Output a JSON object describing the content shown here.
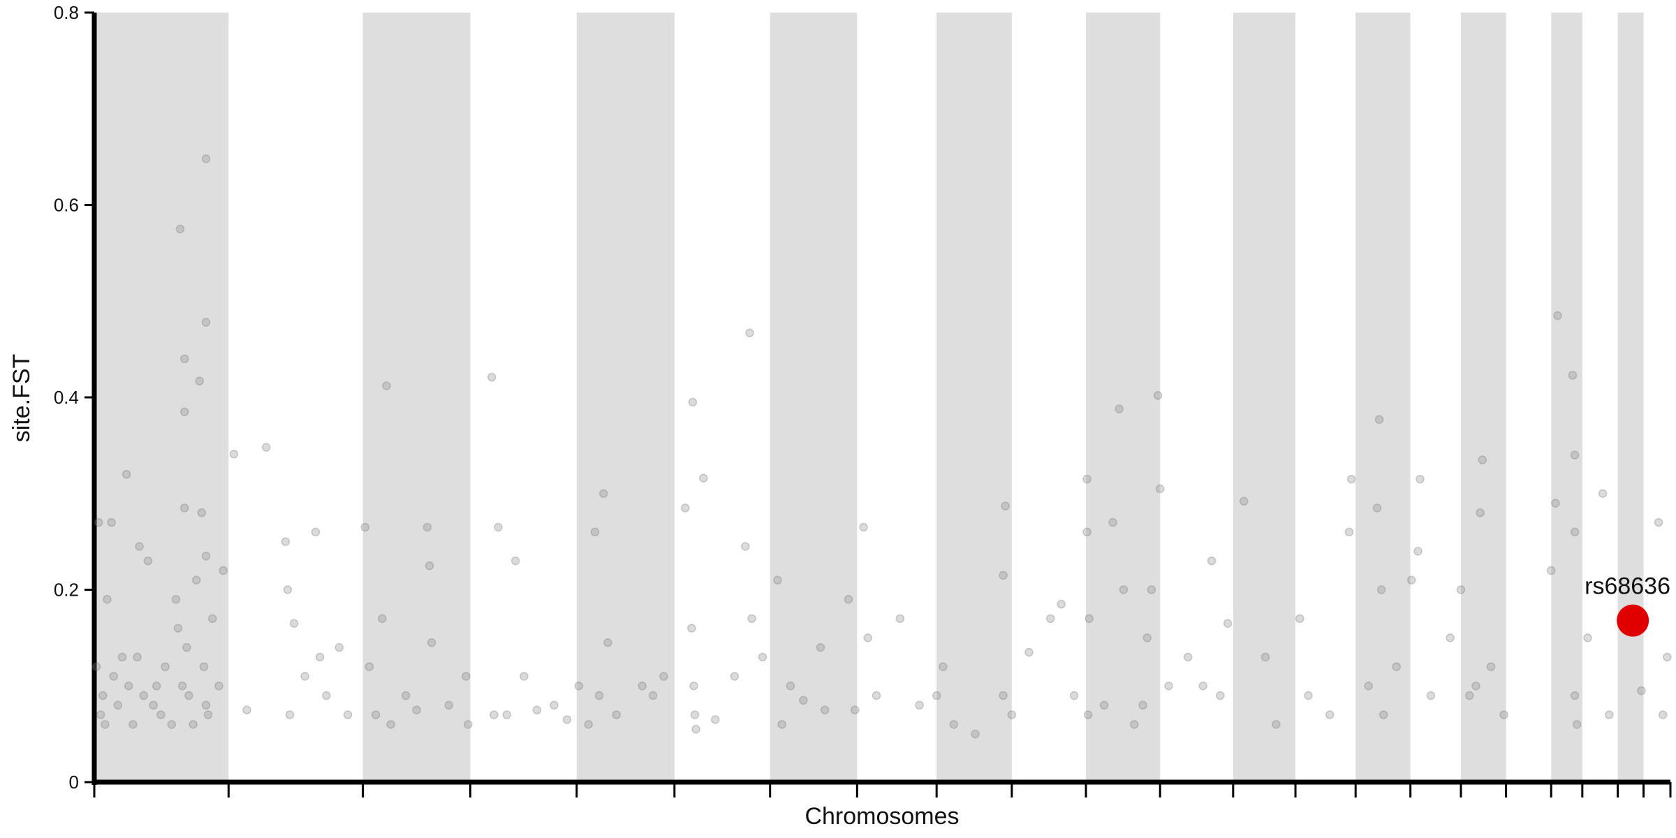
{
  "chart_data": {
    "type": "scatter",
    "xlabel": "Chromosomes",
    "ylabel": "site.FST",
    "xlim": [
      0,
      1467
    ],
    "ylim": [
      0,
      0.8
    ],
    "yticks": [
      0,
      0.2,
      0.4,
      0.6,
      0.8
    ],
    "xticks": [
      0,
      125,
      250,
      350,
      449,
      540,
      629,
      710,
      784,
      854,
      923,
      992,
      1060,
      1118,
      1174,
      1225,
      1272,
      1314,
      1356,
      1385,
      1418,
      1442,
      1467
    ],
    "alternate_shading": true,
    "shade_color": "#dedede",
    "series": [
      {
        "color": "#888888",
        "x": [
          2,
          4,
          6,
          8,
          10,
          12,
          16,
          18,
          22,
          26,
          30,
          32,
          36,
          40,
          42,
          46,
          50,
          55,
          58,
          62,
          66,
          72,
          76,
          78,
          80,
          82,
          84,
          84,
          84,
          86,
          88,
          92,
          95,
          98,
          100,
          102,
          104,
          104,
          104,
          104,
          106,
          110,
          116,
          120,
          130,
          142,
          160,
          178,
          180,
          182,
          186,
          196,
          206,
          210,
          216,
          228,
          236,
          252,
          256,
          262,
          268,
          272,
          276,
          290,
          300,
          310,
          312,
          314,
          330,
          346,
          348,
          370,
          372,
          376,
          384,
          392,
          400,
          412,
          428,
          440,
          451,
          460,
          466,
          470,
          474,
          478,
          486,
          510,
          520,
          530,
          550,
          556,
          557,
          558,
          559,
          560,
          567,
          578,
          596,
          606,
          610,
          612,
          622,
          636,
          640,
          648,
          660,
          676,
          680,
          702,
          708,
          716,
          720,
          728,
          750,
          768,
          784,
          790,
          800,
          820,
          846,
          848,
          846,
          854,
          870,
          890,
          900,
          912,
          924,
          924,
          925,
          926,
          940,
          948,
          954,
          958,
          968,
          976,
          980,
          984,
          990,
          992,
          1000,
          1018,
          1032,
          1040,
          1048,
          1055,
          1070,
          1090,
          1100,
          1122,
          1130,
          1150,
          1168,
          1170,
          1186,
          1194,
          1196,
          1198,
          1200,
          1212,
          1226,
          1232,
          1234,
          1244,
          1262,
          1272,
          1286,
          1280,
          1290,
          1292,
          1300,
          1312,
          1356,
          1360,
          1362,
          1376,
          1378,
          1378,
          1378,
          1380,
          1390,
          1404,
          1410,
          1440,
          1456,
          1460,
          1464
        ],
        "values": [
          0.12,
          0.27,
          0.07,
          0.09,
          0.06,
          0.19,
          0.27,
          0.11,
          0.08,
          0.13,
          0.32,
          0.1,
          0.06,
          0.13,
          0.245,
          0.09,
          0.23,
          0.08,
          0.1,
          0.07,
          0.12,
          0.06,
          0.19,
          0.16,
          0.575,
          0.1,
          0.44,
          0.385,
          0.285,
          0.14,
          0.09,
          0.06,
          0.21,
          0.417,
          0.28,
          0.12,
          0.648,
          0.478,
          0.235,
          0.08,
          0.07,
          0.17,
          0.1,
          0.22,
          0.341,
          0.075,
          0.348,
          0.25,
          0.2,
          0.07,
          0.165,
          0.11,
          0.26,
          0.13,
          0.09,
          0.14,
          0.07,
          0.265,
          0.12,
          0.07,
          0.17,
          0.412,
          0.06,
          0.09,
          0.075,
          0.265,
          0.225,
          0.145,
          0.08,
          0.11,
          0.06,
          0.421,
          0.07,
          0.265,
          0.07,
          0.23,
          0.11,
          0.075,
          0.08,
          0.065,
          0.1,
          0.06,
          0.26,
          0.09,
          0.3,
          0.145,
          0.07,
          0.1,
          0.09,
          0.11,
          0.285,
          0.16,
          0.395,
          0.1,
          0.07,
          0.055,
          0.316,
          0.065,
          0.11,
          0.245,
          0.467,
          0.17,
          0.13,
          0.21,
          0.06,
          0.1,
          0.085,
          0.14,
          0.075,
          0.19,
          0.075,
          0.265,
          0.15,
          0.09,
          0.17,
          0.08,
          0.09,
          0.12,
          0.06,
          0.05,
          0.09,
          0.287,
          0.215,
          0.07,
          0.135,
          0.17,
          0.185,
          0.09,
          0.315,
          0.26,
          0.07,
          0.17,
          0.08,
          0.27,
          0.388,
          0.2,
          0.06,
          0.08,
          0.15,
          0.2,
          0.402,
          0.305,
          0.1,
          0.13,
          0.1,
          0.23,
          0.09,
          0.165,
          0.292,
          0.13,
          0.06,
          0.17,
          0.09,
          0.07,
          0.26,
          0.315,
          0.1,
          0.285,
          0.377,
          0.2,
          0.07,
          0.12,
          0.21,
          0.24,
          0.315,
          0.09,
          0.15,
          0.2,
          0.1,
          0.09,
          0.28,
          0.335,
          0.12,
          0.07,
          0.22,
          0.29,
          0.485,
          0.423,
          0.34,
          0.26,
          0.09,
          0.06,
          0.15,
          0.3,
          0.07,
          0.095,
          0.27,
          0.07,
          0.13
        ]
      },
      {
        "name": "rs68636",
        "color": "#e00000",
        "highlight": true,
        "x": [
          1432
        ],
        "values": [
          0.168
        ]
      }
    ]
  }
}
